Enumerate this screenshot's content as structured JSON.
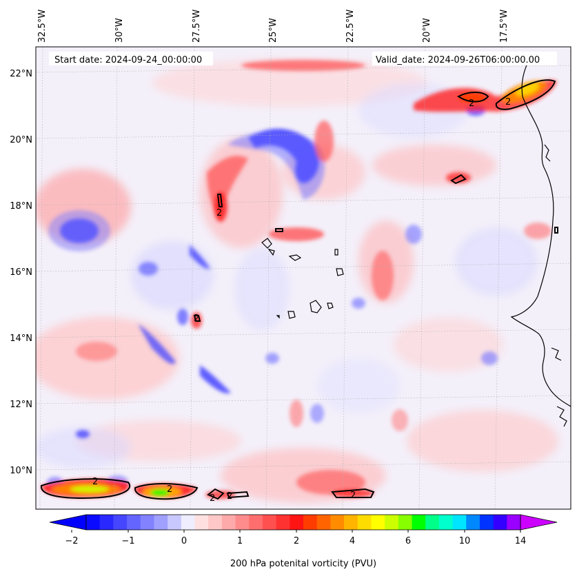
{
  "header": {
    "start_date": "Start date: 2024-09-24_00:00:00",
    "valid_date": "Valid_date: 2024-09-26T06:00:00.00"
  },
  "map": {
    "lon_labels": [
      "32.5°W",
      "30°W",
      "27.5°W",
      "25°W",
      "22.5°W",
      "20°W",
      "17.5°W"
    ],
    "lat_labels": [
      "22°N",
      "20°N",
      "18°N",
      "16°N",
      "14°N",
      "12°N",
      "10°N"
    ],
    "contour_level_label": "2",
    "colors": {
      "negative_strong": "#0000ff",
      "negative_light": "#e6e6ff",
      "positive_light": "#ffe0e0",
      "positive_strong": "#ff0000",
      "high": "#ffff00",
      "extreme": "#00ff00"
    }
  },
  "colorbar": {
    "title": "200 hPa potenital vorticity (PVU)",
    "tick_labels": [
      "−2",
      "−1",
      "0",
      "1",
      "2",
      "4",
      "6",
      "10",
      "14"
    ],
    "colors": [
      "#0a0aff",
      "#2828ff",
      "#4646ff",
      "#6464ff",
      "#8282ff",
      "#a0a0ff",
      "#c8c8ff",
      "#eeeeff",
      "#ffe0e0",
      "#ffc8c8",
      "#ffaaaa",
      "#ff8c8c",
      "#ff6e6e",
      "#ff5050",
      "#ff3232",
      "#ff1414",
      "#ff3c00",
      "#ff6400",
      "#ff8c00",
      "#ffb400",
      "#ffdc00",
      "#ffff00",
      "#ccff00",
      "#88ff00",
      "#00ff00",
      "#00ff88",
      "#00ffcc",
      "#00e5ff",
      "#0088ff",
      "#0033ff",
      "#3300ff",
      "#9900ff"
    ],
    "under_color": "#0000ff",
    "over_color": "#cc00ff"
  }
}
